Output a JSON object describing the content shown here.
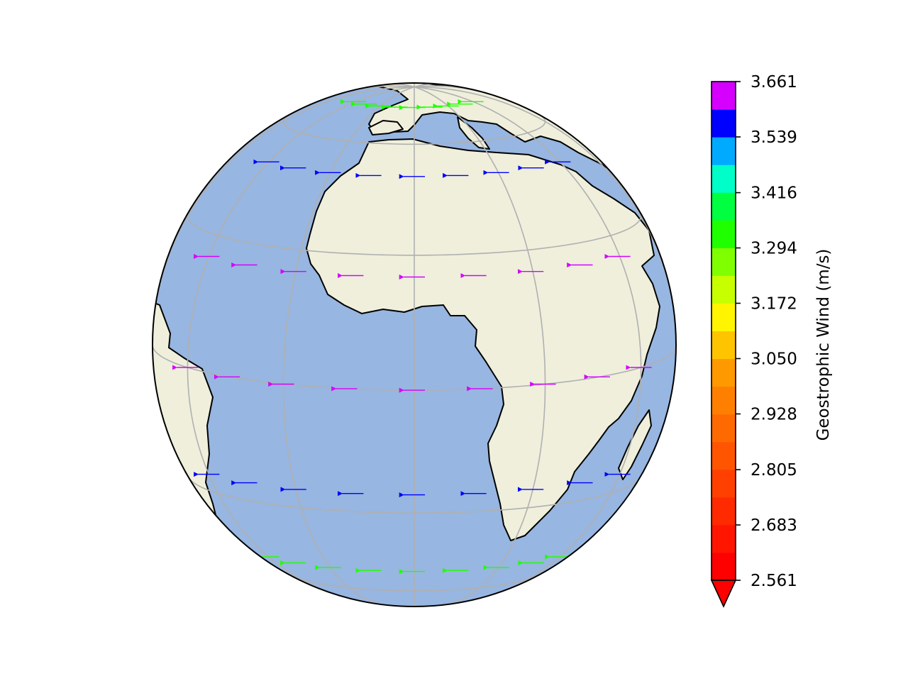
{
  "chart_data": {
    "type": "map-quiver",
    "projection": "orthographic",
    "center": {
      "lon": 0,
      "lat": 10
    },
    "gridlines": {
      "lon_step": 30,
      "lat_step": 30,
      "color": "#b0b0b0"
    },
    "colors": {
      "ocean": "#97b6e1",
      "land": "#efefdc",
      "coast": "#000000"
    },
    "colorbar": {
      "label": "Geostrophic Wind (m/s)",
      "vmin": 2.561,
      "vmax": 3.661,
      "extend": "min",
      "ticks": [
        "2.561",
        "2.683",
        "2.805",
        "2.928",
        "3.050",
        "3.172",
        "3.294",
        "3.416",
        "3.539",
        "3.661"
      ],
      "band_colors": [
        "#ff0000",
        "#ff1500",
        "#ff2a00",
        "#ff4000",
        "#ff5500",
        "#ff6a00",
        "#ff8000",
        "#ff9900",
        "#ffc400",
        "#fff500",
        "#c8ff00",
        "#80ff00",
        "#20ff00",
        "#00ff40",
        "#00ffc8",
        "#00aaff",
        "#0000ff",
        "#d600ff"
      ]
    },
    "wind_rows": [
      {
        "lat": 75,
        "u": -1,
        "magnitude": 3.35,
        "lons": [
          -60,
          -45,
          -30,
          -15,
          0,
          15,
          30,
          45,
          60
        ]
      },
      {
        "lat": 50,
        "u": -1,
        "magnitude": 3.55,
        "lons": [
          -60,
          -45,
          -30,
          -15,
          0,
          15,
          30,
          45,
          60
        ]
      },
      {
        "lat": 25,
        "u": -1,
        "magnitude": 3.63,
        "lons": [
          -60,
          -45,
          -30,
          -15,
          0,
          15,
          30,
          45,
          60
        ]
      },
      {
        "lat": 0,
        "u": -1,
        "magnitude": 3.63,
        "lons": [
          -60,
          -45,
          -30,
          -15,
          0,
          15,
          30,
          45,
          60
        ]
      },
      {
        "lat": -25,
        "u": -1,
        "magnitude": 3.55,
        "lons": [
          -60,
          -45,
          -30,
          -15,
          0,
          15,
          30,
          45,
          60
        ]
      },
      {
        "lat": -50,
        "u": -1,
        "magnitude": 3.35,
        "lons": [
          -60,
          -45,
          -30,
          -15,
          0,
          15,
          30,
          45,
          60
        ]
      }
    ]
  }
}
